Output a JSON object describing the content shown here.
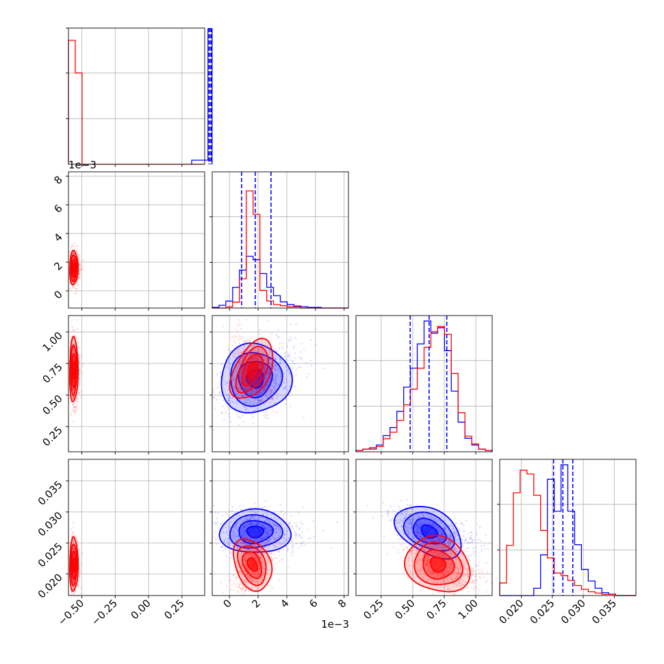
{
  "chart_data": {
    "type": "corner",
    "grid": true,
    "colors": {
      "blue": "#0000ff",
      "red": "#ff0000"
    },
    "series": [
      {
        "color": "#0000ff",
        "p1": {
          "median": 0.46,
          "width": 0.003
        },
        "p2": {
          "quantiles": [
            0.00085,
            0.0018,
            0.0029
          ],
          "mean": 0.0018,
          "sd": 0.0012
        },
        "p3": {
          "quantiles": [
            0.48,
            0.63,
            0.77
          ],
          "mean": 0.63,
          "sd": 0.14
        },
        "p4": {
          "quantiles": [
            0.0252,
            0.0267,
            0.0283
          ],
          "mean": 0.0268,
          "sd": 0.0018
        }
      },
      {
        "color": "#ff0000",
        "p1": {
          "mean": -0.56,
          "sd": 0.015
        },
        "p2": {
          "mean": 0.0016,
          "sd": 0.0006
        },
        "p3": {
          "mean": 0.7,
          "sd": 0.13
        },
        "p4": {
          "mean": 0.0215,
          "sd": 0.0022
        }
      }
    ],
    "axes": {
      "p1": {
        "range": [
          -0.6,
          0.42
        ],
        "ticks": [
          "−0.50",
          "−0.25",
          "0.00",
          "0.25"
        ],
        "tick_values": [
          -0.5,
          -0.25,
          0.0,
          0.25
        ]
      },
      "p2": {
        "range": [
          -0.0012,
          0.0083
        ],
        "ticks_x": [
          "0",
          "2",
          "4",
          "6",
          "8"
        ],
        "ticks_y": [
          "0",
          "2",
          "4",
          "6",
          "8"
        ],
        "tick_values": [
          0,
          0.002,
          0.004,
          0.006,
          0.008
        ],
        "offset": "1e−3"
      },
      "p3": {
        "range": [
          0.05,
          1.13
        ],
        "ticks_x": [
          "0.25",
          "0.50",
          "0.75",
          "1.00"
        ],
        "ticks_y": [
          "0.25",
          "0.50",
          "0.75",
          "1.00"
        ],
        "tick_values": [
          0.25,
          0.5,
          0.75,
          1.0
        ]
      },
      "p4": {
        "range": [
          0.0165,
          0.0385
        ],
        "ticks_x": [
          "0.020",
          "0.025",
          "0.030",
          "0.035"
        ],
        "ticks_y": [
          "0.020",
          "0.025",
          "0.030",
          "0.035"
        ],
        "tick_values": [
          0.02,
          0.025,
          0.03,
          0.035
        ]
      }
    },
    "histograms": {
      "p1": {
        "red": [
          95,
          70,
          0,
          0,
          0,
          0,
          0,
          0,
          0,
          0,
          0,
          0,
          0,
          0,
          0,
          0,
          0,
          0,
          0,
          0
        ],
        "blue_spike": 100
      },
      "p2": {
        "blue": [
          1,
          4,
          10,
          30,
          55,
          75,
          70,
          50,
          30,
          18,
          9,
          5,
          3,
          2,
          1,
          1,
          0,
          0,
          0,
          0
        ],
        "red": [
          0,
          0,
          1,
          5,
          25,
          100,
          80,
          15,
          6,
          3,
          2,
          1,
          1,
          0,
          0,
          0,
          0,
          0,
          0,
          0
        ]
      },
      "p3": {
        "blue": [
          1,
          2,
          3,
          5,
          12,
          18,
          30,
          48,
          62,
          80,
          97,
          88,
          92,
          75,
          45,
          22,
          10,
          5,
          2,
          1
        ],
        "red": [
          1,
          2,
          2,
          4,
          10,
          15,
          24,
          36,
          48,
          64,
          80,
          92,
          96,
          90,
          60,
          30,
          12,
          6,
          2,
          1
        ]
      },
      "p4": {
        "blue": [
          0,
          0,
          0,
          0,
          0,
          5,
          28,
          80,
          58,
          90,
          58,
          35,
          18,
          10,
          5,
          2,
          1,
          0,
          0,
          0
        ],
        "red": [
          10,
          40,
          82,
          100,
          97,
          80,
          52,
          30,
          18,
          16,
          12,
          8,
          5,
          3,
          2,
          1,
          1,
          0,
          0,
          0
        ]
      }
    }
  }
}
